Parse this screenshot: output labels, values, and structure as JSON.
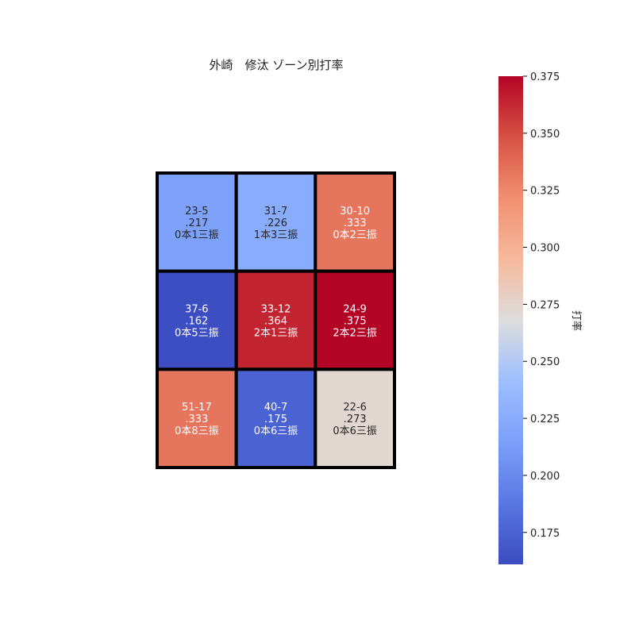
{
  "chart_data": {
    "type": "heatmap",
    "title": "外崎　修汰 ゾーン別打率",
    "colorbar_label": "打率",
    "vmin": 0.161,
    "vmax": 0.375,
    "colorbar_ticks": [
      "0.175",
      "0.200",
      "0.225",
      "0.250",
      "0.275",
      "0.300",
      "0.325",
      "0.350",
      "0.375"
    ],
    "colorbar_tick_values": [
      0.175,
      0.2,
      0.225,
      0.25,
      0.275,
      0.3,
      0.325,
      0.35,
      0.375
    ],
    "colormap": "coolwarm",
    "rows": 3,
    "cols": 3,
    "cells": [
      {
        "row": 0,
        "col": 0,
        "value": 0.217,
        "record": "23-5",
        "avg": ".217",
        "detail": "0本1三振"
      },
      {
        "row": 0,
        "col": 1,
        "value": 0.226,
        "record": "31-7",
        "avg": ".226",
        "detail": "1本3三振"
      },
      {
        "row": 0,
        "col": 2,
        "value": 0.333,
        "record": "30-10",
        "avg": ".333",
        "detail": "0本2三振"
      },
      {
        "row": 1,
        "col": 0,
        "value": 0.162,
        "record": "37-6",
        "avg": ".162",
        "detail": "0本5三振"
      },
      {
        "row": 1,
        "col": 1,
        "value": 0.364,
        "record": "33-12",
        "avg": ".364",
        "detail": "2本1三振"
      },
      {
        "row": 1,
        "col": 2,
        "value": 0.375,
        "record": "24-9",
        "avg": ".375",
        "detail": "2本2三振"
      },
      {
        "row": 2,
        "col": 0,
        "value": 0.333,
        "record": "51-17",
        "avg": ".333",
        "detail": "0本8三振"
      },
      {
        "row": 2,
        "col": 1,
        "value": 0.175,
        "record": "40-7",
        "avg": ".175",
        "detail": "0本6三振"
      },
      {
        "row": 2,
        "col": 2,
        "value": 0.273,
        "record": "22-6",
        "avg": ".273",
        "detail": "0本6三振"
      }
    ]
  }
}
